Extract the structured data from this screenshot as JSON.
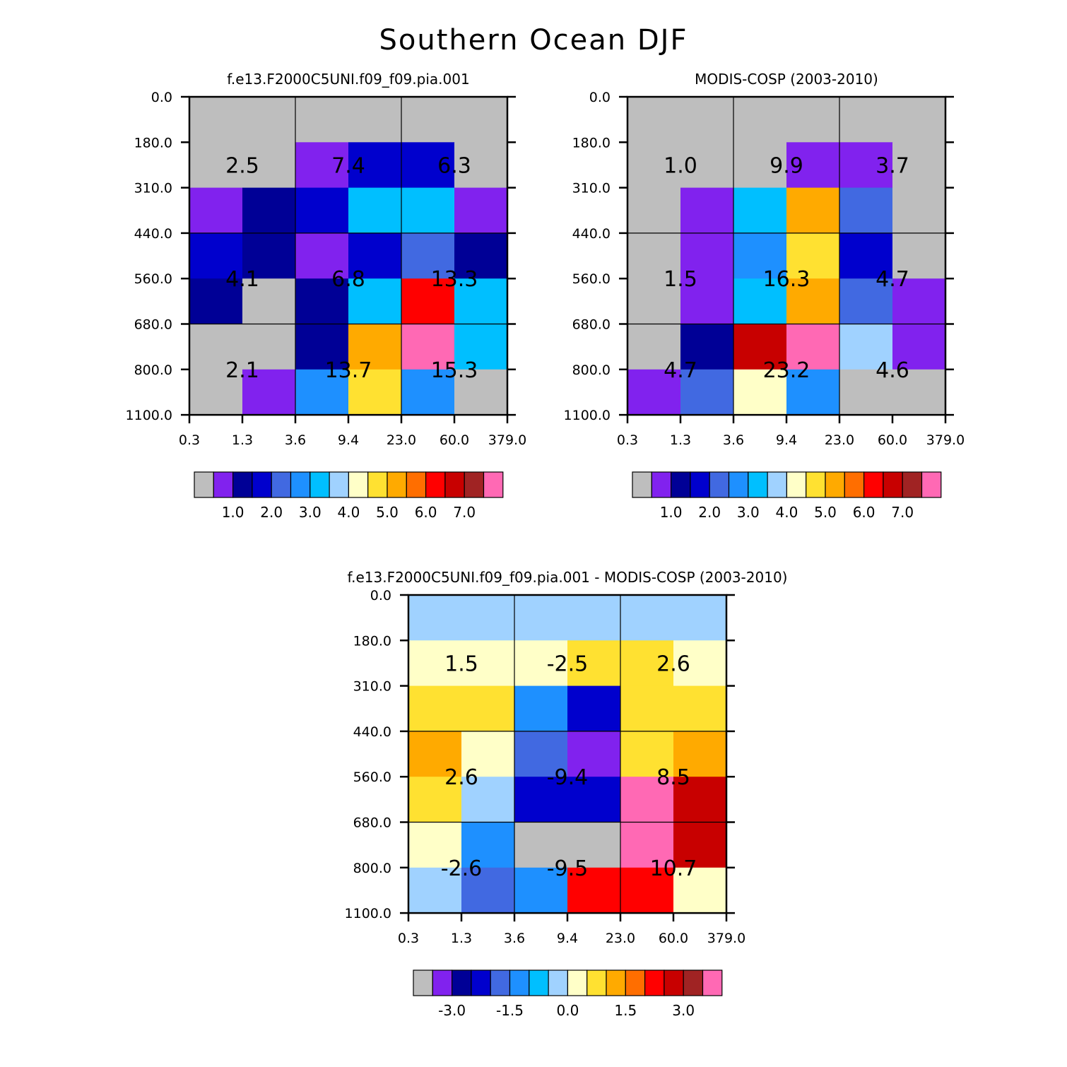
{
  "title": "Southern Ocean DJF",
  "colors": {
    "palette": [
      "#bebebe",
      "#8122ee",
      "#000096",
      "#0000cd",
      "#4169e1",
      "#1e90ff",
      "#00bfff",
      "#a0d2ff",
      "#ffffc8",
      "#ffe131",
      "#ffaa00",
      "#ff6e00",
      "#ff0000",
      "#c80000",
      "#a02323",
      "#ff69b4"
    ],
    "grid_line": "#000000"
  },
  "chart_data": [
    {
      "type": "heatmap",
      "id": "model",
      "title": "f.e13.F2000C5UNI.f09_f09.pia.001",
      "x_edges": [
        "0.3",
        "1.3",
        "3.6",
        "9.4",
        "23.0",
        "60.0",
        "379.0"
      ],
      "y_edges": [
        "0.0",
        "180.0",
        "310.0",
        "440.0",
        "560.0",
        "680.0",
        "800.0",
        "1100.0"
      ],
      "grid": [
        [
          0,
          0,
          0,
          0,
          0,
          0
        ],
        [
          0,
          0,
          1,
          3,
          3,
          0
        ],
        [
          1,
          2,
          3,
          6,
          6,
          1
        ],
        [
          3,
          2,
          1,
          3,
          4,
          2
        ],
        [
          2,
          0,
          2,
          6,
          12,
          6
        ],
        [
          0,
          0,
          2,
          10,
          15,
          6
        ],
        [
          0,
          1,
          5,
          9,
          5,
          0
        ]
      ],
      "group_labels": [
        [
          "2.5",
          "7.4",
          "6.3"
        ],
        [
          "4.1",
          "6.8",
          "13.3"
        ],
        [
          "2.1",
          "13.7",
          "15.3"
        ]
      ],
      "colorbar": {
        "labels": [
          "1.0",
          "2.0",
          "3.0",
          "4.0",
          "5.0",
          "6.0",
          "7.0"
        ],
        "label_boxes": [
          2,
          4,
          6,
          8,
          10,
          12,
          14
        ]
      }
    },
    {
      "type": "heatmap",
      "id": "obs",
      "title": "MODIS-COSP (2003-2010)",
      "x_edges": [
        "0.3",
        "1.3",
        "3.6",
        "9.4",
        "23.0",
        "60.0",
        "379.0"
      ],
      "y_edges": [
        "0.0",
        "180.0",
        "310.0",
        "440.0",
        "560.0",
        "680.0",
        "800.0",
        "1100.0"
      ],
      "grid": [
        [
          0,
          0,
          0,
          0,
          0,
          0
        ],
        [
          0,
          0,
          0,
          1,
          1,
          0
        ],
        [
          0,
          1,
          6,
          10,
          4,
          0
        ],
        [
          0,
          1,
          5,
          9,
          3,
          0
        ],
        [
          0,
          1,
          6,
          10,
          4,
          1
        ],
        [
          0,
          2,
          13,
          15,
          7,
          1
        ],
        [
          1,
          4,
          8,
          5,
          0,
          0
        ]
      ],
      "group_labels": [
        [
          "1.0",
          "9.9",
          "3.7"
        ],
        [
          "1.5",
          "16.3",
          "4.7"
        ],
        [
          "4.7",
          "23.2",
          "4.6"
        ]
      ],
      "colorbar": {
        "labels": [
          "1.0",
          "2.0",
          "3.0",
          "4.0",
          "5.0",
          "6.0",
          "7.0"
        ],
        "label_boxes": [
          2,
          4,
          6,
          8,
          10,
          12,
          14
        ]
      }
    },
    {
      "type": "heatmap",
      "id": "diff",
      "title": "f.e13.F2000C5UNI.f09_f09.pia.001 - MODIS-COSP (2003-2010)",
      "x_edges": [
        "0.3",
        "1.3",
        "3.6",
        "9.4",
        "23.0",
        "60.0",
        "379.0"
      ],
      "y_edges": [
        "0.0",
        "180.0",
        "310.0",
        "440.0",
        "560.0",
        "680.0",
        "800.0",
        "1100.0"
      ],
      "grid": [
        [
          7,
          7,
          7,
          7,
          7,
          7
        ],
        [
          8,
          8,
          8,
          9,
          9,
          8
        ],
        [
          9,
          9,
          5,
          3,
          9,
          9
        ],
        [
          10,
          8,
          4,
          1,
          9,
          10
        ],
        [
          9,
          7,
          3,
          3,
          15,
          13
        ],
        [
          8,
          5,
          0,
          0,
          15,
          13
        ],
        [
          7,
          4,
          5,
          12,
          12,
          8
        ]
      ],
      "group_labels": [
        [
          "1.5",
          "-2.5",
          "2.6"
        ],
        [
          "2.6",
          "-9.4",
          "8.5"
        ],
        [
          "-2.6",
          "-9.5",
          "10.7"
        ]
      ],
      "colorbar": {
        "labels": [
          "-3.0",
          "-1.5",
          "0.0",
          "1.5",
          "3.0"
        ],
        "label_boxes": [
          2,
          5,
          8,
          11,
          14
        ]
      }
    }
  ]
}
